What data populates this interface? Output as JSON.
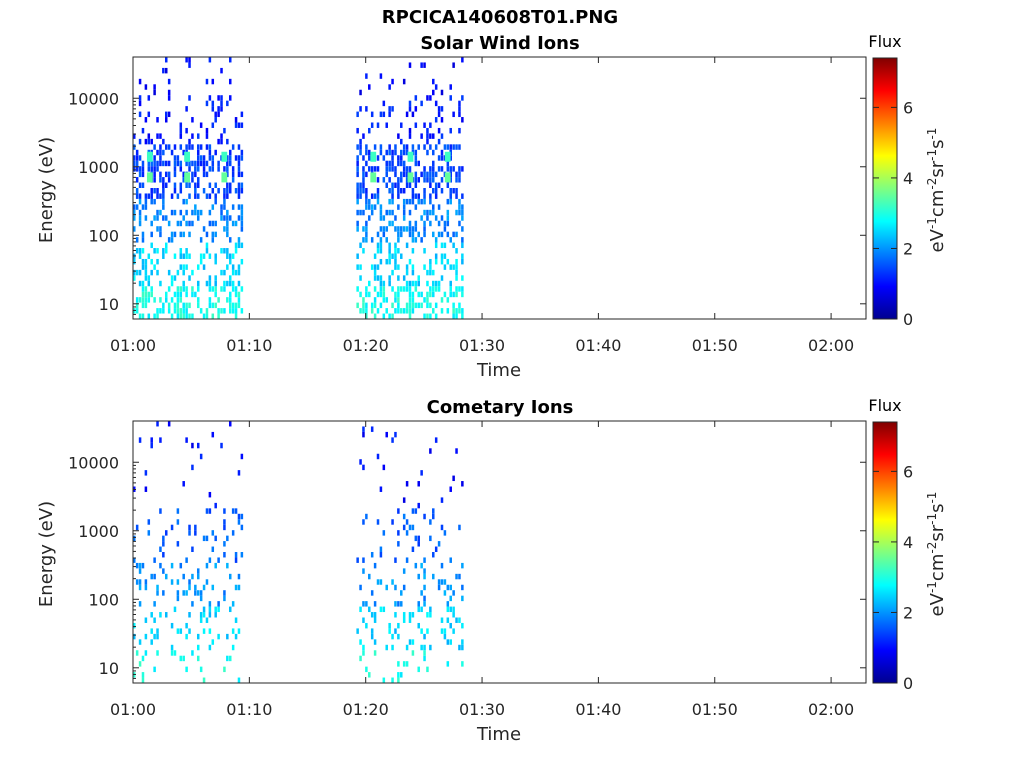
{
  "figure": {
    "title": "RPCICA140608T01.PNG"
  },
  "chart_data": [
    {
      "type": "heatmap",
      "title": "Solar Wind Ions",
      "xlabel": "Time",
      "ylabel": "Energy (eV)",
      "yscale": "log",
      "ylim": [
        6,
        40000
      ],
      "xlim_min": [
        0,
        63
      ],
      "xticks_min": [
        0,
        10,
        20,
        30,
        40,
        50,
        60
      ],
      "xtick_labels": [
        "01:00",
        "01:10",
        "01:20",
        "01:30",
        "01:40",
        "01:50",
        "02:00"
      ],
      "yticks": [
        10,
        100,
        1000,
        10000
      ],
      "ytick_labels": [
        "10",
        "100",
        "1000",
        "10000"
      ],
      "colorbar": {
        "title": "Flux",
        "label": "eV-1cm-2sr-1s-1",
        "range": [
          0,
          7.4
        ],
        "ticks": [
          0,
          2,
          4,
          6
        ],
        "tick_labels": [
          "0",
          "2",
          "4",
          "6"
        ]
      },
      "active_intervals_min": [
        [
          0,
          9.5
        ],
        [
          19.2,
          28.3
        ]
      ],
      "peaks": [
        {
          "t_min": 1.2,
          "energy": 700,
          "flux": 3.5
        },
        {
          "t_min": 1.2,
          "energy": 1400,
          "flux": 3.2
        },
        {
          "t_min": 4.4,
          "energy": 700,
          "flux": 3.5
        },
        {
          "t_min": 4.4,
          "energy": 1400,
          "flux": 3.2
        },
        {
          "t_min": 7.6,
          "energy": 700,
          "flux": 3.5
        },
        {
          "t_min": 7.6,
          "energy": 1400,
          "flux": 3.2
        },
        {
          "t_min": 20.4,
          "energy": 700,
          "flux": 3.5
        },
        {
          "t_min": 20.4,
          "energy": 1400,
          "flux": 3.2
        },
        {
          "t_min": 23.6,
          "energy": 700,
          "flux": 3.5
        },
        {
          "t_min": 23.6,
          "energy": 1400,
          "flux": 3.2
        },
        {
          "t_min": 26.8,
          "energy": 700,
          "flux": 3.5
        },
        {
          "t_min": 26.8,
          "energy": 1400,
          "flux": 3.2
        }
      ],
      "grid": false
    },
    {
      "type": "heatmap",
      "title": "Cometary Ions",
      "xlabel": "Time",
      "ylabel": "Energy (eV)",
      "yscale": "log",
      "ylim": [
        6,
        40000
      ],
      "xlim_min": [
        0,
        63
      ],
      "xticks_min": [
        0,
        10,
        20,
        30,
        40,
        50,
        60
      ],
      "xtick_labels": [
        "01:00",
        "01:10",
        "01:20",
        "01:30",
        "01:40",
        "01:50",
        "02:00"
      ],
      "yticks": [
        10,
        100,
        1000,
        10000
      ],
      "ytick_labels": [
        "10",
        "100",
        "1000",
        "10000"
      ],
      "colorbar": {
        "title": "Flux",
        "label": "eV-1cm-2sr-1s-1",
        "range": [
          0,
          7.4
        ],
        "ticks": [
          0,
          2,
          4,
          6
        ],
        "tick_labels": [
          "0",
          "2",
          "4",
          "6"
        ]
      },
      "active_intervals_min": [
        [
          0,
          9.5
        ],
        [
          19.2,
          28.3
        ]
      ],
      "grid": false
    }
  ],
  "colors": {
    "axis": "#262626",
    "background": "#ffffff"
  }
}
